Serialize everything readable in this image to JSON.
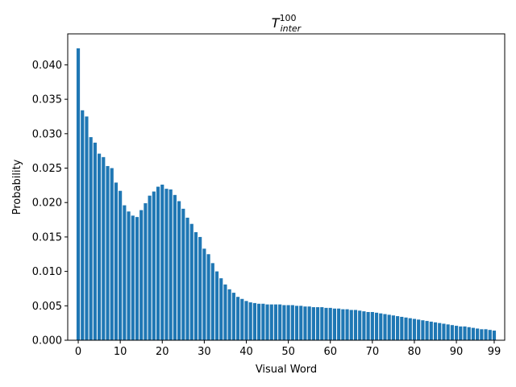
{
  "chart_data": {
    "type": "bar",
    "title": {
      "base": "T",
      "superscript": "100",
      "subscript": "inter"
    },
    "xlabel": "Visual Word",
    "ylabel": "Probability",
    "xlim": [
      -2.5,
      101.5
    ],
    "ylim": [
      0.0,
      0.0445
    ],
    "x_ticks": [
      0,
      10,
      20,
      30,
      40,
      50,
      60,
      70,
      80,
      90,
      99
    ],
    "y_ticks": [
      0.0,
      0.005,
      0.01,
      0.015,
      0.02,
      0.025,
      0.03,
      0.035,
      0.04
    ],
    "y_tick_labels": [
      "0.000",
      "0.005",
      "0.010",
      "0.015",
      "0.020",
      "0.025",
      "0.030",
      "0.035",
      "0.040"
    ],
    "grid": false,
    "bar_color": "#1f77b4",
    "categories": [
      0,
      1,
      2,
      3,
      4,
      5,
      6,
      7,
      8,
      9,
      10,
      11,
      12,
      13,
      14,
      15,
      16,
      17,
      18,
      19,
      20,
      21,
      22,
      23,
      24,
      25,
      26,
      27,
      28,
      29,
      30,
      31,
      32,
      33,
      34,
      35,
      36,
      37,
      38,
      39,
      40,
      41,
      42,
      43,
      44,
      45,
      46,
      47,
      48,
      49,
      50,
      51,
      52,
      53,
      54,
      55,
      56,
      57,
      58,
      59,
      60,
      61,
      62,
      63,
      64,
      65,
      66,
      67,
      68,
      69,
      70,
      71,
      72,
      73,
      74,
      75,
      76,
      77,
      78,
      79,
      80,
      81,
      82,
      83,
      84,
      85,
      86,
      87,
      88,
      89,
      90,
      91,
      92,
      93,
      94,
      95,
      96,
      97,
      98,
      99
    ],
    "values": [
      0.0424,
      0.0334,
      0.0325,
      0.0295,
      0.0287,
      0.0271,
      0.0266,
      0.0253,
      0.025,
      0.0229,
      0.0217,
      0.0196,
      0.0187,
      0.0181,
      0.0179,
      0.0189,
      0.0199,
      0.021,
      0.0216,
      0.0223,
      0.0226,
      0.022,
      0.0219,
      0.0211,
      0.0202,
      0.0191,
      0.0178,
      0.0169,
      0.0157,
      0.015,
      0.0133,
      0.0125,
      0.0112,
      0.01,
      0.009,
      0.0081,
      0.0074,
      0.0069,
      0.0063,
      0.006,
      0.0057,
      0.0055,
      0.0054,
      0.0053,
      0.0053,
      0.0052,
      0.0052,
      0.0052,
      0.0052,
      0.0051,
      0.0051,
      0.0051,
      0.005,
      0.005,
      0.0049,
      0.0049,
      0.0048,
      0.0048,
      0.0048,
      0.0047,
      0.0047,
      0.0046,
      0.0046,
      0.0045,
      0.0045,
      0.0044,
      0.0044,
      0.0043,
      0.0042,
      0.0041,
      0.0041,
      0.004,
      0.0039,
      0.0038,
      0.0037,
      0.0036,
      0.0035,
      0.0034,
      0.0033,
      0.0032,
      0.0031,
      0.003,
      0.0029,
      0.0028,
      0.0027,
      0.0026,
      0.0025,
      0.0024,
      0.0023,
      0.0022,
      0.0021,
      0.002,
      0.002,
      0.0019,
      0.0018,
      0.0017,
      0.0016,
      0.0016,
      0.0015,
      0.0014
    ]
  }
}
